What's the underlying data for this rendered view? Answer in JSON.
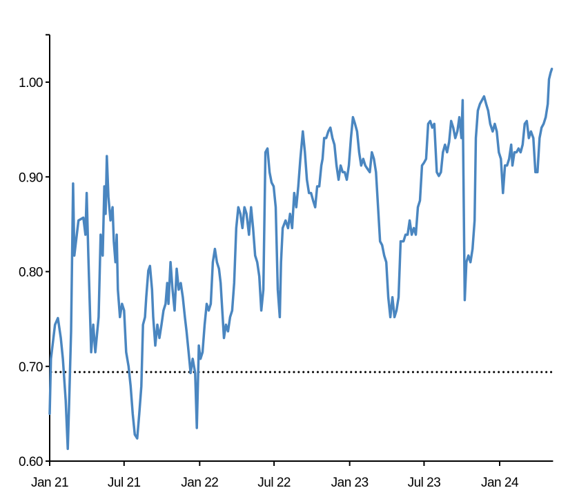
{
  "chart_data": {
    "type": "line",
    "title": "",
    "xlabel": "",
    "ylabel": "",
    "xlim": [
      "2021-01-01",
      "2024-05-10"
    ],
    "ylim": [
      0.6,
      1.05
    ],
    "grid": false,
    "y_ticks": [
      0.6,
      0.7,
      0.8,
      0.9,
      1.0
    ],
    "y_tick_labels": [
      "0.60",
      "0.70",
      "0.80",
      "0.90",
      "1.00"
    ],
    "x_ticks": [
      "2021-01-01",
      "2021-07-01",
      "2022-01-01",
      "2022-07-01",
      "2023-01-01",
      "2023-07-01",
      "2024-01-01"
    ],
    "x_tick_labels": [
      "Jan 21",
      "Jul 21",
      "Jan 22",
      "Jul 22",
      "Jan 23",
      "Jul 23",
      "Jan 24"
    ],
    "reference_line": {
      "y": 0.694,
      "style": "dotted",
      "color": "#000000"
    },
    "series": [
      {
        "color": "#4A86C0",
        "x": [
          "2021-01-01",
          "2021-01-04",
          "2021-01-14",
          "2021-01-21",
          "2021-01-28",
          "2021-02-02",
          "2021-02-09",
          "2021-02-14",
          "2021-02-17",
          "2021-02-22",
          "2021-02-27",
          "2021-03-02",
          "2021-03-12",
          "2021-03-24",
          "2021-03-29",
          "2021-04-01",
          "2021-04-05",
          "2021-04-12",
          "2021-04-17",
          "2021-04-22",
          "2021-04-30",
          "2021-05-05",
          "2021-05-10",
          "2021-05-14",
          "2021-05-17",
          "2021-05-20",
          "2021-05-24",
          "2021-05-29",
          "2021-06-03",
          "2021-06-06",
          "2021-06-10",
          "2021-06-13",
          "2021-06-16",
          "2021-06-21",
          "2021-06-26",
          "2021-07-01",
          "2021-07-06",
          "2021-07-12",
          "2021-07-17",
          "2021-07-22",
          "2021-07-27",
          "2021-08-02",
          "2021-08-07",
          "2021-08-12",
          "2021-08-16",
          "2021-08-21",
          "2021-08-24",
          "2021-08-29",
          "2021-09-02",
          "2021-09-07",
          "2021-09-10",
          "2021-09-15",
          "2021-09-20",
          "2021-09-25",
          "2021-09-30",
          "2021-10-05",
          "2021-10-10",
          "2021-10-14",
          "2021-10-17",
          "2021-10-22",
          "2021-10-27",
          "2021-11-01",
          "2021-11-06",
          "2021-11-11",
          "2021-11-16",
          "2021-11-21",
          "2021-11-26",
          "2021-11-30",
          "2021-12-05",
          "2021-12-10",
          "2021-12-15",
          "2021-12-21",
          "2021-12-25",
          "2021-12-30",
          "2022-01-03",
          "2022-01-08",
          "2022-01-13",
          "2022-01-18",
          "2022-01-23",
          "2022-01-28",
          "2022-02-02",
          "2022-02-07",
          "2022-02-12",
          "2022-02-17",
          "2022-02-21",
          "2022-02-24",
          "2022-03-01",
          "2022-03-06",
          "2022-03-11",
          "2022-03-16",
          "2022-03-21",
          "2022-03-26",
          "2022-03-31",
          "2022-04-05",
          "2022-04-10",
          "2022-04-15",
          "2022-04-20",
          "2022-04-25",
          "2022-05-01",
          "2022-05-06",
          "2022-05-11",
          "2022-05-16",
          "2022-05-21",
          "2022-05-26",
          "2022-05-31",
          "2022-06-05",
          "2022-06-10",
          "2022-06-15",
          "2022-06-20",
          "2022-06-25",
          "2022-06-30",
          "2022-07-05",
          "2022-07-10",
          "2022-07-15",
          "2022-07-18",
          "2022-07-22",
          "2022-07-29",
          "2022-08-04",
          "2022-08-09",
          "2022-08-14",
          "2022-08-19",
          "2022-08-24",
          "2022-08-29",
          "2022-09-03",
          "2022-09-09",
          "2022-09-14",
          "2022-09-19",
          "2022-09-24",
          "2022-09-29",
          "2022-10-04",
          "2022-10-09",
          "2022-10-14",
          "2022-10-19",
          "2022-10-24",
          "2022-10-27",
          "2022-10-31",
          "2022-11-05",
          "2022-11-10",
          "2022-11-15",
          "2022-11-20",
          "2022-11-25",
          "2022-11-30",
          "2022-12-05",
          "2022-12-10",
          "2022-12-15",
          "2022-12-20",
          "2022-12-25",
          "2022-12-30",
          "2023-01-04",
          "2023-01-09",
          "2023-01-14",
          "2023-01-19",
          "2023-01-24",
          "2023-01-29",
          "2023-02-03",
          "2023-02-08",
          "2023-02-14",
          "2023-02-19",
          "2023-02-24",
          "2023-03-01",
          "2023-03-06",
          "2023-03-11",
          "2023-03-16",
          "2023-03-21",
          "2023-03-26",
          "2023-03-31",
          "2023-04-05",
          "2023-04-10",
          "2023-04-15",
          "2023-04-20",
          "2023-04-25",
          "2023-04-30",
          "2023-05-05",
          "2023-05-12",
          "2023-05-17",
          "2023-05-22",
          "2023-05-27",
          "2023-06-01",
          "2023-06-06",
          "2023-06-11",
          "2023-06-16",
          "2023-06-21",
          "2023-06-26",
          "2023-07-01",
          "2023-07-06",
          "2023-07-11",
          "2023-07-16",
          "2023-07-21",
          "2023-07-26",
          "2023-08-01",
          "2023-08-06",
          "2023-08-11",
          "2023-08-16",
          "2023-08-21",
          "2023-08-26",
          "2023-08-31",
          "2023-09-05",
          "2023-09-10",
          "2023-09-15",
          "2023-09-20",
          "2023-09-25",
          "2023-09-30",
          "2023-10-03",
          "2023-10-08",
          "2023-10-12",
          "2023-10-17",
          "2023-10-22",
          "2023-10-27",
          "2023-11-01",
          "2023-11-04",
          "2023-11-09",
          "2023-11-14",
          "2023-11-19",
          "2023-11-24",
          "2023-11-29",
          "2023-12-04",
          "2023-12-09",
          "2023-12-15",
          "2023-12-20",
          "2023-12-25",
          "2023-12-30",
          "2024-01-04",
          "2024-01-09",
          "2024-01-14",
          "2024-01-19",
          "2024-01-24",
          "2024-01-29",
          "2024-02-01",
          "2024-02-06",
          "2024-02-11",
          "2024-02-16",
          "2024-02-21",
          "2024-02-26",
          "2024-03-02",
          "2024-03-07",
          "2024-03-12",
          "2024-03-17",
          "2024-03-23",
          "2024-03-28",
          "2024-04-02",
          "2024-04-07",
          "2024-04-12",
          "2024-04-17",
          "2024-04-22",
          "2024-04-27",
          "2024-04-30",
          "2024-05-04",
          "2024-05-07"
        ],
        "y": [
          0.65,
          0.708,
          0.744,
          0.751,
          0.73,
          0.708,
          0.664,
          0.613,
          0.657,
          0.737,
          0.893,
          0.817,
          0.854,
          0.857,
          0.839,
          0.883,
          0.817,
          0.715,
          0.744,
          0.715,
          0.752,
          0.839,
          0.817,
          0.89,
          0.861,
          0.922,
          0.879,
          0.854,
          0.868,
          0.832,
          0.81,
          0.839,
          0.781,
          0.752,
          0.766,
          0.759,
          0.715,
          0.7,
          0.679,
          0.65,
          0.628,
          0.624,
          0.65,
          0.679,
          0.744,
          0.752,
          0.773,
          0.801,
          0.806,
          0.781,
          0.752,
          0.722,
          0.744,
          0.73,
          0.744,
          0.759,
          0.766,
          0.788,
          0.766,
          0.81,
          0.781,
          0.759,
          0.803,
          0.781,
          0.788,
          0.773,
          0.752,
          0.737,
          0.715,
          0.693,
          0.708,
          0.693,
          0.635,
          0.722,
          0.708,
          0.715,
          0.744,
          0.766,
          0.759,
          0.766,
          0.81,
          0.824,
          0.81,
          0.803,
          0.788,
          0.766,
          0.73,
          0.744,
          0.737,
          0.752,
          0.759,
          0.788,
          0.846,
          0.868,
          0.861,
          0.846,
          0.868,
          0.861,
          0.839,
          0.868,
          0.846,
          0.817,
          0.81,
          0.795,
          0.759,
          0.781,
          0.926,
          0.93,
          0.905,
          0.894,
          0.89,
          0.868,
          0.781,
          0.752,
          0.81,
          0.846,
          0.854,
          0.846,
          0.861,
          0.846,
          0.883,
          0.868,
          0.89,
          0.919,
          0.948,
          0.926,
          0.897,
          0.883,
          0.883,
          0.875,
          0.868,
          0.89,
          0.89,
          0.912,
          0.919,
          0.941,
          0.941,
          0.948,
          0.952,
          0.941,
          0.934,
          0.912,
          0.897,
          0.912,
          0.905,
          0.905,
          0.897,
          0.912,
          0.941,
          0.963,
          0.956,
          0.948,
          0.926,
          0.912,
          0.919,
          0.912,
          0.908,
          0.905,
          0.926,
          0.919,
          0.905,
          0.868,
          0.832,
          0.828,
          0.817,
          0.81,
          0.773,
          0.752,
          0.773,
          0.752,
          0.759,
          0.773,
          0.832,
          0.832,
          0.839,
          0.839,
          0.854,
          0.839,
          0.846,
          0.839,
          0.868,
          0.875,
          0.912,
          0.915,
          0.919,
          0.956,
          0.959,
          0.952,
          0.956,
          0.905,
          0.901,
          0.905,
          0.926,
          0.934,
          0.926,
          0.937,
          0.959,
          0.952,
          0.941,
          0.948,
          0.963,
          0.941,
          0.981,
          0.77,
          0.81,
          0.817,
          0.81,
          0.824,
          0.854,
          0.941,
          0.97,
          0.977,
          0.981,
          0.985,
          0.977,
          0.97,
          0.956,
          0.948,
          0.956,
          0.948,
          0.926,
          0.919,
          0.883,
          0.912,
          0.912,
          0.919,
          0.934,
          0.912,
          0.926,
          0.926,
          0.93,
          0.926,
          0.934,
          0.956,
          0.959,
          0.941,
          0.948,
          0.941,
          0.905,
          0.905,
          0.941,
          0.952,
          0.956,
          0.963,
          0.977,
          1.003,
          1.01,
          1.014
        ]
      }
    ]
  }
}
